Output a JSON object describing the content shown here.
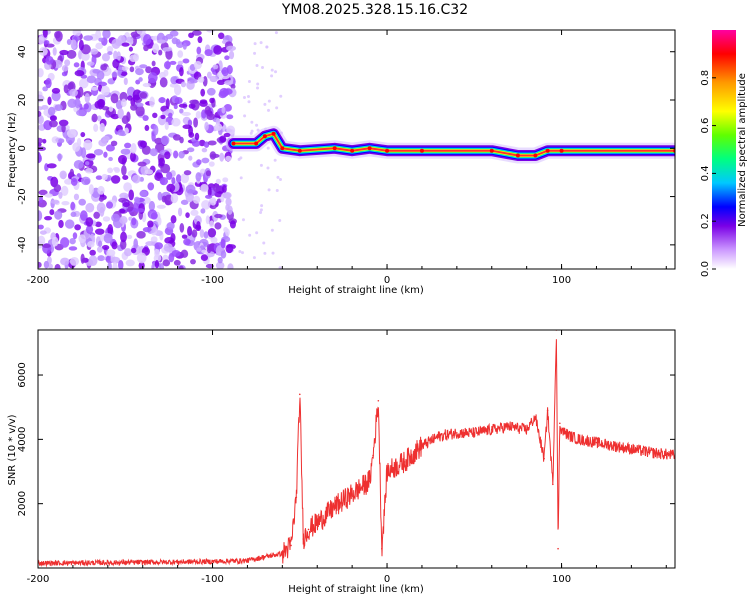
{
  "title": "YM08.2025.328.15.16.C32",
  "chart_data": [
    {
      "type": "heatmap",
      "xlabel": "Height of straight line (km)",
      "ylabel": "Frequency (Hz)",
      "xlim": [
        -200,
        165
      ],
      "ylim": [
        -50,
        49
      ],
      "xticks": [
        -200,
        -100,
        0,
        100
      ],
      "yticks": [
        -40,
        -20,
        0,
        20,
        40
      ],
      "noise_region_x": [
        -200,
        -88
      ],
      "ridge": [
        {
          "x": -88,
          "y": 2
        },
        {
          "x": -75,
          "y": 2
        },
        {
          "x": -70,
          "y": 5
        },
        {
          "x": -65,
          "y": 6
        },
        {
          "x": -60,
          "y": 0
        },
        {
          "x": -50,
          "y": -1
        },
        {
          "x": -30,
          "y": 0
        },
        {
          "x": -20,
          "y": -1
        },
        {
          "x": -10,
          "y": 0
        },
        {
          "x": 0,
          "y": -1
        },
        {
          "x": 20,
          "y": -1
        },
        {
          "x": 60,
          "y": -1
        },
        {
          "x": 75,
          "y": -3
        },
        {
          "x": 85,
          "y": -3
        },
        {
          "x": 92,
          "y": -1
        },
        {
          "x": 100,
          "y": -1
        },
        {
          "x": 165,
          "y": -1
        }
      ],
      "colorbar": {
        "label": "Normalized spectral amplitude",
        "range": [
          0,
          1
        ],
        "ticks": [
          0.0,
          0.2,
          0.4,
          0.6,
          0.8
        ],
        "colors": [
          "#ffffff",
          "#cc99ff",
          "#7a00e6",
          "#0000ff",
          "#00c8ff",
          "#00ff80",
          "#60ff00",
          "#ffff00",
          "#ff9900",
          "#ff0000",
          "#ff00a0"
        ]
      }
    },
    {
      "type": "line",
      "xlabel": "Height of straight line (km)",
      "ylabel": "SNR (10 * v/v)",
      "xlim": [
        -200,
        165
      ],
      "ylim": [
        0,
        7400
      ],
      "xticks": [
        -200,
        -100,
        0,
        100
      ],
      "yticks": [
        2000,
        4000,
        6000
      ],
      "color": "#ee3030",
      "x": [
        -200,
        -150,
        -100,
        -80,
        -70,
        -60,
        -55,
        -52,
        -50,
        -48,
        -45,
        -40,
        -30,
        -20,
        -10,
        -8,
        -5,
        -3,
        0,
        10,
        20,
        30,
        40,
        50,
        60,
        70,
        80,
        85,
        90,
        92,
        95,
        97,
        98,
        99,
        100,
        102,
        105,
        110,
        120,
        130,
        140,
        150,
        165
      ],
      "values": [
        150,
        170,
        200,
        230,
        350,
        450,
        700,
        2200,
        5400,
        900,
        1200,
        1400,
        1900,
        2300,
        2700,
        3500,
        5200,
        600,
        3000,
        3300,
        3800,
        4100,
        4200,
        4200,
        4300,
        4400,
        4300,
        4700,
        3400,
        4900,
        2600,
        7400,
        600,
        4500,
        4300,
        4200,
        4100,
        4000,
        3900,
        3800,
        3700,
        3600,
        3500
      ]
    }
  ]
}
